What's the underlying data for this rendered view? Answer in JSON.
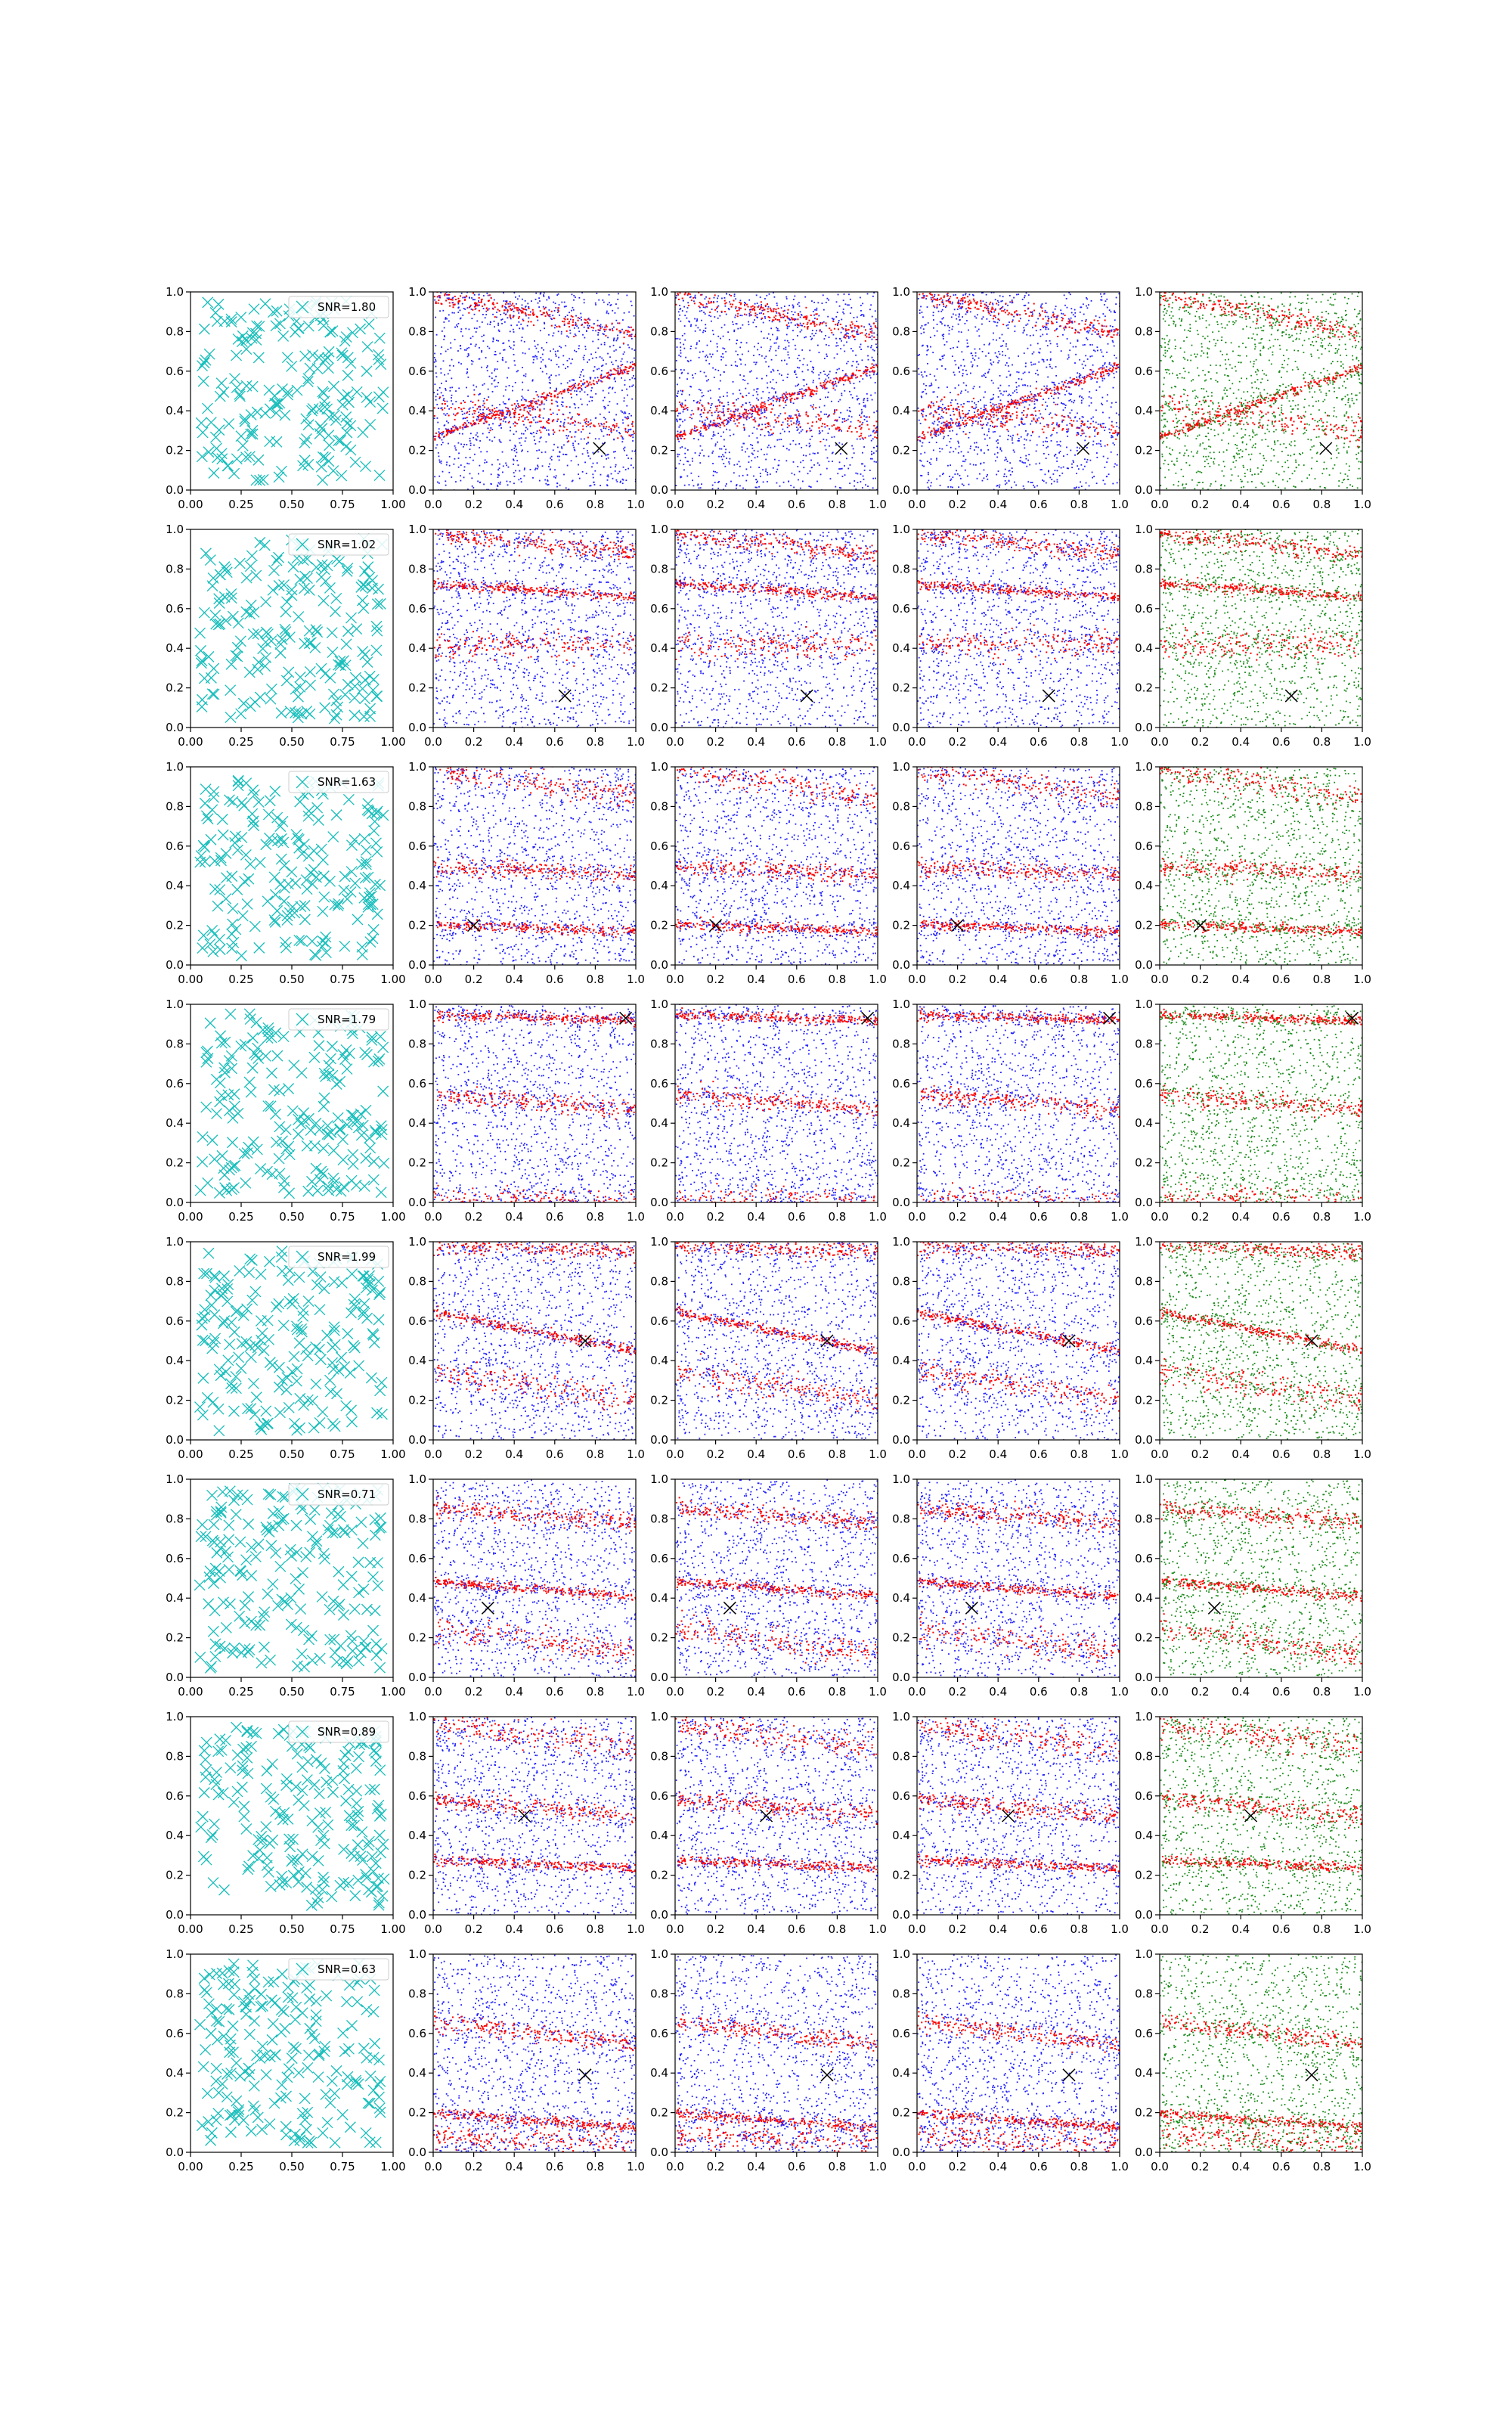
{
  "figure": {
    "rows": 8,
    "columns": 5,
    "colors": {
      "cyan_markers": "#17bebb",
      "blue_points": "#1f1fff",
      "red_points": "#ff0000",
      "green_points": "#1a8a1a",
      "target_marker": "#000000",
      "axes": "#000000"
    }
  },
  "chart_data": [
    {
      "type": "scatter",
      "row": 1,
      "legend": "SNR=1.80",
      "marker": "x",
      "n_points": 200,
      "xlim": [
        0,
        1
      ],
      "ylim": [
        0,
        1
      ],
      "xticks": [
        "0.00",
        "0.25",
        "0.50",
        "0.75",
        "1.00"
      ],
      "yticks": [
        "0.0",
        "0.2",
        "0.4",
        "0.6",
        "0.8",
        "1.0"
      ]
    },
    {
      "type": "scatter",
      "row": 2,
      "legend": "SNR=1.02",
      "marker": "x",
      "n_points": 200,
      "xlim": [
        0,
        1
      ],
      "ylim": [
        0,
        1
      ],
      "xticks": [
        "0.00",
        "0.25",
        "0.50",
        "0.75",
        "1.00"
      ],
      "yticks": [
        "0.0",
        "0.2",
        "0.4",
        "0.6",
        "0.8",
        "1.0"
      ]
    },
    {
      "type": "scatter",
      "row": 3,
      "legend": "SNR=1.63",
      "marker": "x",
      "n_points": 200,
      "xlim": [
        0,
        1
      ],
      "ylim": [
        0,
        1
      ],
      "xticks": [
        "0.00",
        "0.25",
        "0.50",
        "0.75",
        "1.00"
      ],
      "yticks": [
        "0.0",
        "0.2",
        "0.4",
        "0.6",
        "0.8",
        "1.0"
      ]
    },
    {
      "type": "scatter",
      "row": 4,
      "legend": "SNR=1.79",
      "marker": "x",
      "n_points": 200,
      "xlim": [
        0,
        1
      ],
      "ylim": [
        0,
        1
      ],
      "xticks": [
        "0.00",
        "0.25",
        "0.50",
        "0.75",
        "1.00"
      ],
      "yticks": [
        "0.0",
        "0.2",
        "0.4",
        "0.6",
        "0.8",
        "1.0"
      ]
    },
    {
      "type": "scatter",
      "row": 5,
      "legend": "SNR=1.99",
      "marker": "x",
      "n_points": 200,
      "xlim": [
        0,
        1
      ],
      "ylim": [
        0,
        1
      ],
      "xticks": [
        "0.00",
        "0.25",
        "0.50",
        "0.75",
        "1.00"
      ],
      "yticks": [
        "0.0",
        "0.2",
        "0.4",
        "0.6",
        "0.8",
        "1.0"
      ]
    },
    {
      "type": "scatter",
      "row": 6,
      "legend": "SNR=0.71",
      "marker": "x",
      "n_points": 200,
      "xlim": [
        0,
        1
      ],
      "ylim": [
        0,
        1
      ],
      "xticks": [
        "0.00",
        "0.25",
        "0.50",
        "0.75",
        "1.00"
      ],
      "yticks": [
        "0.0",
        "0.2",
        "0.4",
        "0.6",
        "0.8",
        "1.0"
      ]
    },
    {
      "type": "scatter",
      "row": 7,
      "legend": "SNR=0.89",
      "marker": "x",
      "n_points": 200,
      "xlim": [
        0,
        1
      ],
      "ylim": [
        0,
        1
      ],
      "xticks": [
        "0.00",
        "0.25",
        "0.50",
        "0.75",
        "1.00"
      ],
      "yticks": [
        "0.0",
        "0.2",
        "0.4",
        "0.6",
        "0.8",
        "1.0"
      ]
    },
    {
      "type": "scatter",
      "row": 8,
      "legend": "SNR=0.63",
      "marker": "x",
      "n_points": 200,
      "xlim": [
        0,
        1
      ],
      "ylim": [
        0,
        1
      ],
      "xticks": [
        "0.00",
        "0.25",
        "0.50",
        "0.75",
        "1.00"
      ],
      "yticks": [
        "0.0",
        "0.2",
        "0.4",
        "0.6",
        "0.8",
        "1.0"
      ]
    }
  ],
  "density_panels": {
    "xlim": [
      0,
      1
    ],
    "ylim": [
      0,
      1
    ],
    "xticks": [
      "0.0",
      "0.2",
      "0.4",
      "0.6",
      "0.8",
      "1.0"
    ],
    "yticks": [
      "0.0",
      "0.2",
      "0.4",
      "0.6",
      "0.8",
      "1.0"
    ],
    "column_point_colors": [
      [
        "blue",
        "red"
      ],
      [
        "blue",
        "red"
      ],
      [
        "blue",
        "red"
      ],
      [
        "green",
        "red"
      ]
    ],
    "rows": [
      {
        "row": 1,
        "target": [
          0.82,
          0.21
        ],
        "bands": [
          [
            0.27,
            0.63,
            0.0
          ],
          [
            0.99,
            0.79,
            0.0
          ],
          [
            0.42,
            0.31,
            0.0
          ]
        ]
      },
      {
        "row": 2,
        "target": [
          0.65,
          0.16
        ],
        "bands": [
          [
            0.73,
            0.66,
            0.0
          ],
          [
            0.98,
            0.88,
            0.0
          ],
          [
            0.42,
            0.42,
            0.0
          ]
        ]
      },
      {
        "row": 3,
        "target": [
          0.2,
          0.2
        ],
        "bands": [
          [
            0.21,
            0.17,
            0.0
          ],
          [
            0.5,
            0.46,
            0.0
          ],
          [
            0.99,
            0.85,
            0.0
          ]
        ]
      },
      {
        "row": 4,
        "target": [
          0.95,
          0.93
        ],
        "bands": [
          [
            0.95,
            0.92,
            0.0
          ],
          [
            0.55,
            0.47,
            0.0
          ],
          [
            0.02,
            0.0,
            0.0
          ]
        ]
      },
      {
        "row": 5,
        "target": [
          0.75,
          0.5
        ],
        "bands": [
          [
            0.65,
            0.45,
            0.0
          ],
          [
            0.99,
            0.95,
            0.0
          ],
          [
            0.35,
            0.2,
            0.0
          ]
        ]
      },
      {
        "row": 6,
        "target": [
          0.27,
          0.35
        ],
        "bands": [
          [
            0.49,
            0.41,
            0.0
          ],
          [
            0.86,
            0.78,
            0.0
          ],
          [
            0.25,
            0.12,
            0.0
          ]
        ]
      },
      {
        "row": 7,
        "target": [
          0.45,
          0.5
        ],
        "bands": [
          [
            0.28,
            0.24,
            0.0
          ],
          [
            0.59,
            0.5,
            0.0
          ],
          [
            0.97,
            0.84,
            0.0
          ]
        ]
      },
      {
        "row": 8,
        "target": [
          0.75,
          0.39
        ],
        "bands": [
          [
            0.2,
            0.13,
            0.0
          ],
          [
            0.66,
            0.55,
            0.0
          ],
          [
            0.09,
            0.04,
            0.0
          ]
        ]
      }
    ]
  }
}
